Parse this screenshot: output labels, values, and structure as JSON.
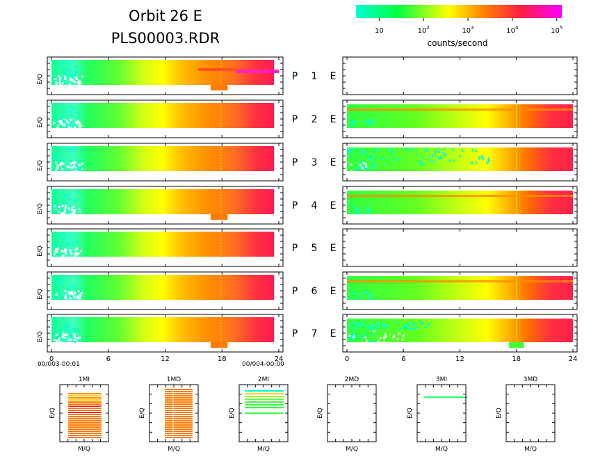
{
  "title": {
    "line1": "Orbit 26 E",
    "line2": "PLS00003.RDR"
  },
  "colorbar": {
    "label": "counts/second",
    "tick_labels": [
      "10",
      "10^2",
      "10^3",
      "10^4",
      "10^5"
    ],
    "tick_values": [
      10,
      100,
      1000,
      10000,
      100000
    ],
    "scale": "log",
    "range": [
      3,
      130000
    ],
    "colors": [
      "#00ffd0",
      "#00ff44",
      "#ffff00",
      "#ff8000",
      "#ff2040",
      "#ff00ff"
    ]
  },
  "panel_ylabel": "E/Q",
  "left_time": {
    "start": "00/003-00:01",
    "end": "00/004-00:00"
  },
  "x_ticks": [
    0,
    6,
    12,
    18,
    24
  ],
  "rows": [
    {
      "p": "P",
      "n": "1",
      "e": "E",
      "left_rate": 0.26,
      "right_on": false
    },
    {
      "p": "P",
      "n": "2",
      "e": "E",
      "left_rate": 0.0,
      "right_on": true
    },
    {
      "p": "P",
      "n": "3",
      "e": "E",
      "left_rate": 0.0,
      "right_on": true
    },
    {
      "p": "P",
      "n": "4",
      "e": "E",
      "left_rate": 0.0,
      "right_on": true
    },
    {
      "p": "P",
      "n": "5",
      "e": "E",
      "left_rate": 0.0,
      "right_on": false
    },
    {
      "p": "P",
      "n": "6",
      "e": "E",
      "left_rate": 0.0,
      "right_on": true
    },
    {
      "p": "P",
      "n": "7",
      "e": "E",
      "left_rate": 0.0,
      "right_on": true
    }
  ],
  "small_plots": [
    {
      "title": "1MI",
      "xlabel": "M/Q",
      "ylabel": "E/Q"
    },
    {
      "title": "1MD",
      "xlabel": "M/Q",
      "ylabel": "E/Q"
    },
    {
      "title": "2MI",
      "xlabel": "M/Q",
      "ylabel": "E/Q"
    },
    {
      "title": "2MD",
      "xlabel": "M/Q",
      "ylabel": "E/Q"
    },
    {
      "title": "3MI",
      "xlabel": "M/Q",
      "ylabel": "E/Q"
    },
    {
      "title": "3MD",
      "xlabel": "M/Q",
      "ylabel": "E/Q"
    }
  ],
  "chart_data": {
    "type": "heatmap",
    "x_axis": {
      "range": [
        0,
        24
      ],
      "ticks": [
        0,
        6,
        12,
        18,
        24
      ]
    },
    "color_scale": "log counts/second",
    "left_column_profile_hours": [
      0,
      3,
      6,
      9,
      12,
      15,
      18,
      21,
      23.5
    ],
    "left_column_profile_counts": [
      8,
      6,
      30,
      100,
      300,
      1000,
      2000,
      8000,
      20000
    ],
    "right_rows_on": [
      "2",
      "3",
      "4",
      "6",
      "7"
    ]
  }
}
